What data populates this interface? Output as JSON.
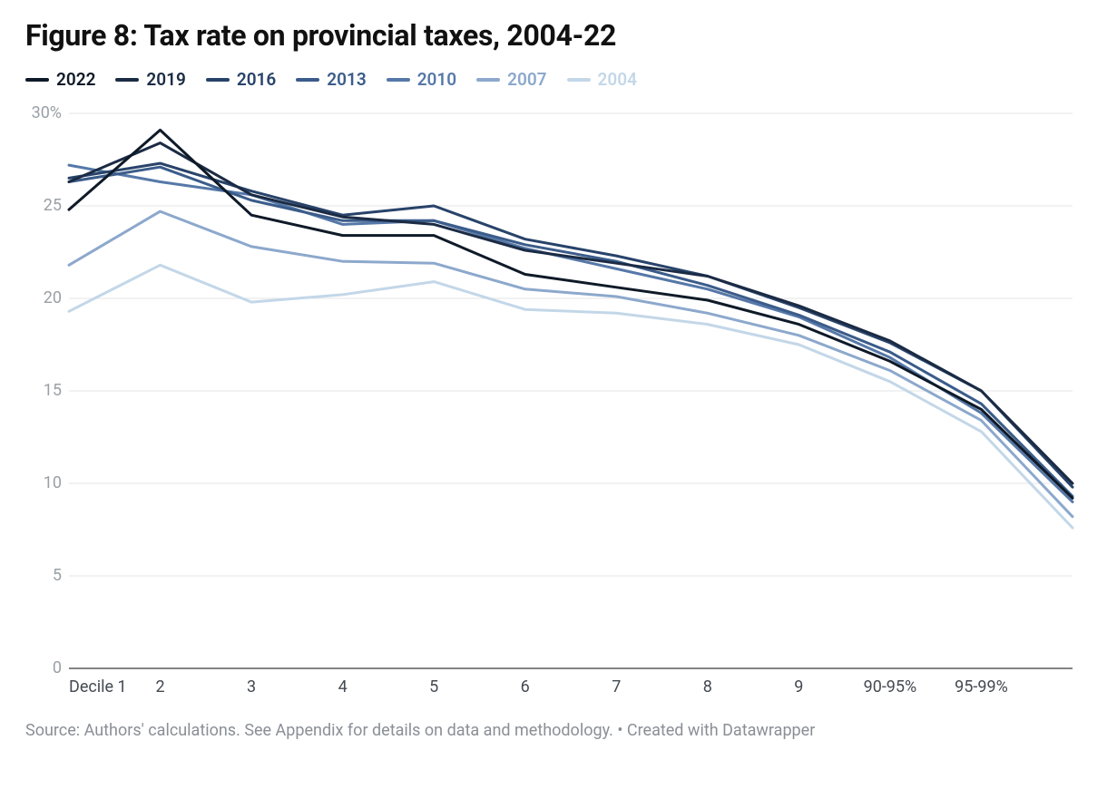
{
  "title": "Figure 8: Tax rate on provincial taxes, 2004-22",
  "legend_order": [
    "2022",
    "2019",
    "2016",
    "2013",
    "2010",
    "2007",
    "2004"
  ],
  "legend_labels": {
    "2022": "2022",
    "2019": "2019",
    "2016": "2016",
    "2013": "2013",
    "2010": "2010",
    "2007": "2007",
    "2004": "2004"
  },
  "chart": {
    "type": "line",
    "background_color": "#ffffff",
    "grid_color": "#e6e6e6",
    "axis_color": "#3a3a3a",
    "ytick_label_color": "#9aa0a6",
    "xtick_label_color": "#444a52",
    "title_fontsize": 32,
    "label_fontsize": 18,
    "line_width": 3,
    "x_categories": [
      "Decile 1",
      "2",
      "3",
      "4",
      "5",
      "6",
      "7",
      "8",
      "9",
      "90-95%",
      "95-99%",
      ""
    ],
    "ylim": [
      0,
      30
    ],
    "yticks": [
      0,
      5,
      10,
      15,
      20,
      25,
      30
    ],
    "ytick_labels": [
      "0",
      "5",
      "10",
      "15",
      "20",
      "25",
      "30%"
    ],
    "series": {
      "2022": {
        "color": "#0f1a28",
        "values": [
          24.8,
          29.1,
          24.5,
          23.4,
          23.4,
          21.3,
          20.6,
          19.9,
          18.6,
          16.6,
          14.0,
          9.2
        ]
      },
      "2019": {
        "color": "#1b2b44",
        "values": [
          26.3,
          28.4,
          25.6,
          24.4,
          24.0,
          22.6,
          21.9,
          21.2,
          19.6,
          17.7,
          15.0,
          10.0
        ]
      },
      "2016": {
        "color": "#28436a",
        "values": [
          26.5,
          27.3,
          25.8,
          24.5,
          25.0,
          23.2,
          22.3,
          21.2,
          19.5,
          17.6,
          15.0,
          9.8
        ]
      },
      "2013": {
        "color": "#3b5c8a",
        "values": [
          26.3,
          27.1,
          25.3,
          24.2,
          24.2,
          22.9,
          22.0,
          20.7,
          19.1,
          17.1,
          14.3,
          9.3
        ]
      },
      "2010": {
        "color": "#5678a8",
        "values": [
          27.2,
          26.3,
          25.6,
          24.0,
          24.2,
          22.7,
          21.6,
          20.5,
          19.0,
          16.8,
          13.8,
          9.0
        ]
      },
      "2007": {
        "color": "#8ca8cc",
        "values": [
          21.8,
          24.7,
          22.8,
          22.0,
          21.9,
          20.5,
          20.1,
          19.2,
          18.0,
          16.1,
          13.4,
          8.2
        ]
      },
      "2004": {
        "color": "#c3d7e8",
        "values": [
          19.3,
          21.8,
          19.8,
          20.2,
          20.9,
          19.4,
          19.2,
          18.6,
          17.5,
          15.5,
          12.8,
          7.6
        ]
      }
    }
  },
  "source_text": "Source: Authors' calculations. See Appendix for details on data and methodology. • Created with Datawrapper"
}
